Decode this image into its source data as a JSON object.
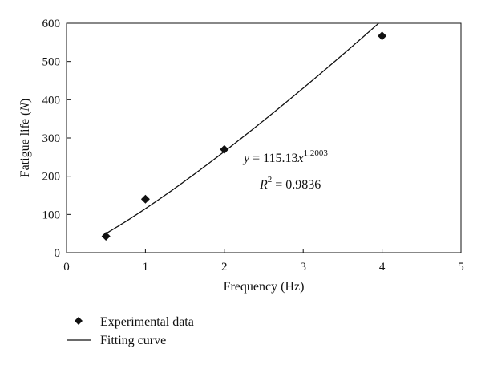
{
  "chart_data": {
    "type": "scatter",
    "xlabel": "Frequency (Hz)",
    "ylabel_main": "Fatigue life (",
    "ylabel_var": "N",
    "ylabel_close": ")",
    "xlim": [
      0,
      5
    ],
    "ylim": [
      0,
      600
    ],
    "xticks": [
      "0",
      "1",
      "2",
      "3",
      "4",
      "5"
    ],
    "yticks": [
      "0",
      "100",
      "200",
      "300",
      "400",
      "500",
      "600"
    ],
    "grid": false,
    "legend_position": "bottom-left",
    "series": [
      {
        "name": "Experimental data",
        "marker": "diamond",
        "x": [
          0.5,
          1,
          2,
          4
        ],
        "y": [
          43,
          140,
          270,
          567
        ]
      },
      {
        "name": "Fitting curve",
        "kind": "line",
        "coefficient": 115.13,
        "exponent": 1.2003
      }
    ],
    "annotations": {
      "equation_lhs": "y",
      "equation_mid": " = 115.13",
      "equation_var": "x",
      "equation_exp": "1.2003",
      "r2_var": "R",
      "r2_sup": "2",
      "r2_value": " = 0.9836"
    }
  }
}
